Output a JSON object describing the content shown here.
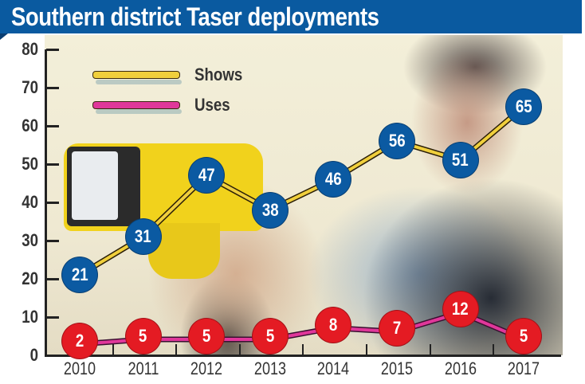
{
  "header": {
    "title": "Southern district Taser deployments"
  },
  "legend": {
    "shows": {
      "label": "Shows",
      "color": "#f0cf3c"
    },
    "uses": {
      "label": "Uses",
      "color": "#e0379a"
    }
  },
  "axes": {
    "y_ticks": [
      "80",
      "70",
      "60",
      "50",
      "40",
      "30",
      "20",
      "10",
      "0"
    ],
    "x_ticks": [
      "2010",
      "2011",
      "2012",
      "2013",
      "2014",
      "2015",
      "2016",
      "2017"
    ]
  },
  "labels": {
    "shows": [
      "21",
      "31",
      "47",
      "38",
      "46",
      "56",
      "51",
      "65"
    ],
    "uses": [
      "2",
      "5",
      "5",
      "5",
      "8",
      "7",
      "12",
      "5"
    ]
  },
  "chart_data": {
    "type": "line",
    "title": "Southern district Taser deployments",
    "xlabel": "",
    "ylabel": "",
    "categories": [
      "2010",
      "2011",
      "2012",
      "2013",
      "2014",
      "2015",
      "2016",
      "2017"
    ],
    "series": [
      {
        "name": "Shows",
        "values": [
          21,
          31,
          47,
          38,
          46,
          56,
          51,
          65
        ],
        "color": "#f0cf3c",
        "marker_color": "#0b5aa2"
      },
      {
        "name": "Uses",
        "values": [
          2,
          5,
          5,
          5,
          8,
          7,
          12,
          5
        ],
        "color": "#e0379a",
        "marker_color": "#e41b23"
      }
    ],
    "ylim": [
      0,
      80
    ],
    "yticks": [
      0,
      10,
      20,
      30,
      40,
      50,
      60,
      70,
      80
    ],
    "grid": false,
    "legend_position": "top-left",
    "data_labels": true
  }
}
